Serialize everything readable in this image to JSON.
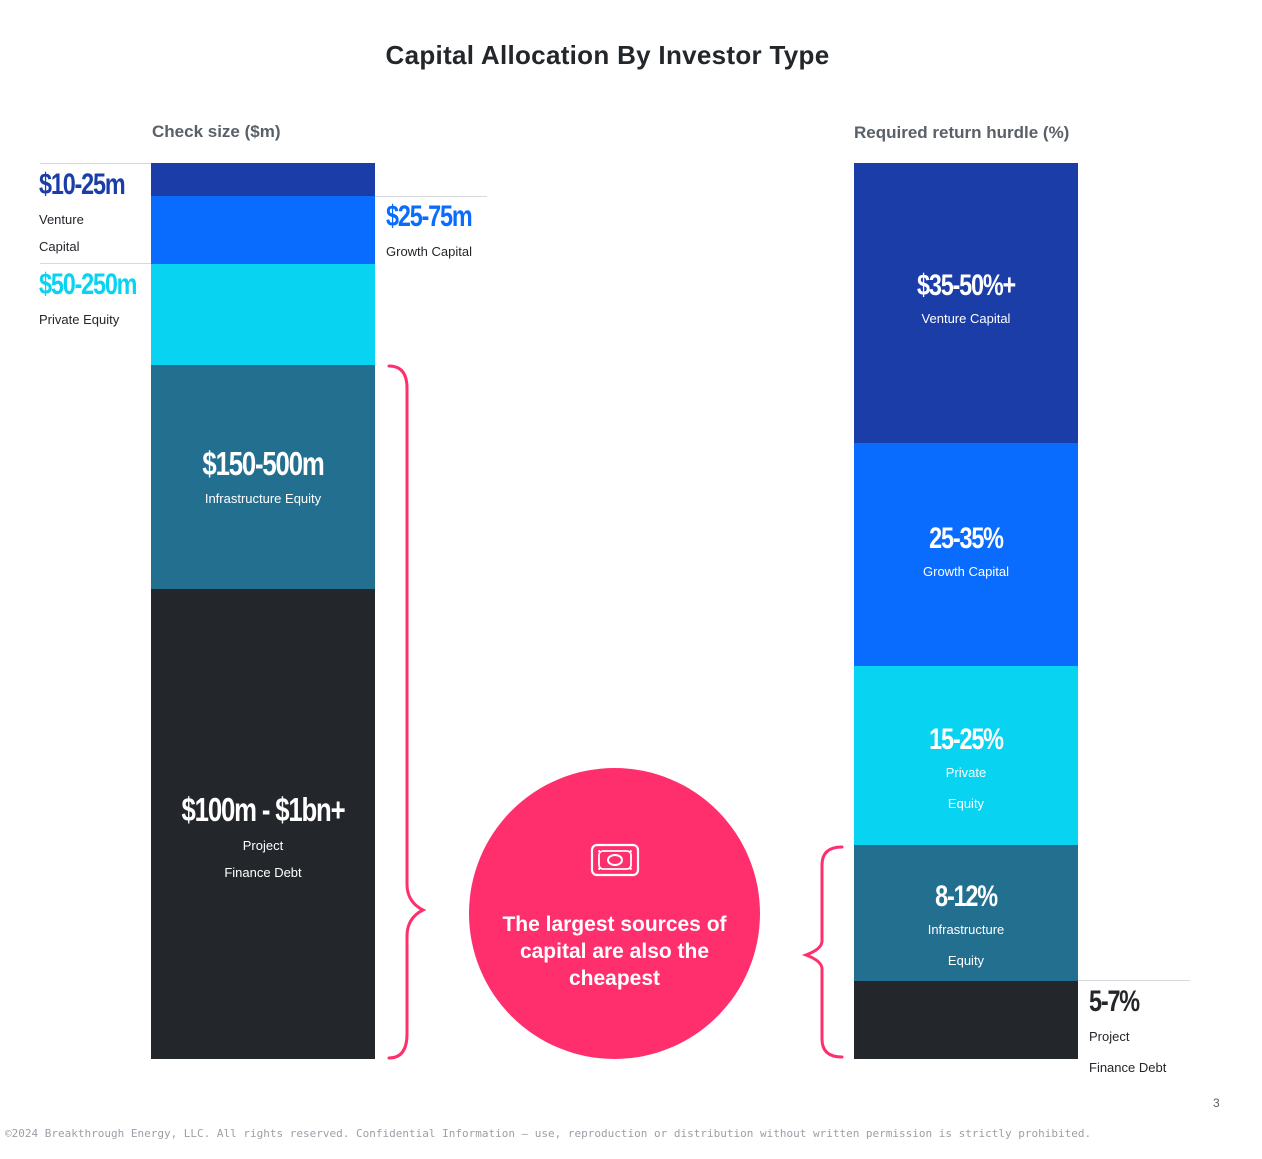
{
  "title": "Capital Allocation By Investor Type",
  "colors": {
    "venture": "#1a3da8",
    "growth": "#0a6cff",
    "private_equity": "#08d4f2",
    "infrastructure": "#236f90",
    "project_finance": "#23262b",
    "accent": "#ff2f6e"
  },
  "chart_data": [
    {
      "type": "bar",
      "title": "Check size ($m)",
      "stacked": true,
      "segments": [
        {
          "label": "$10-25m",
          "name": "Venture Capital",
          "name_lines": [
            "Venture",
            "Capital"
          ]
        },
        {
          "label": "$25-75m",
          "name": "Growth Capital",
          "name_lines": [
            "Growth Capital"
          ]
        },
        {
          "label": "$50-250m",
          "name": "Private Equity",
          "name_lines": [
            "Private Equity"
          ]
        },
        {
          "label": "$150-500m",
          "name": "Infrastructure Equity",
          "name_lines": [
            "Infrastructure Equity"
          ]
        },
        {
          "label": "$100m - $1bn+",
          "name": "Project Finance Debt",
          "name_lines": [
            "Project",
            "Finance Debt"
          ]
        }
      ]
    },
    {
      "type": "bar",
      "title": "Required return hurdle (%)",
      "stacked": true,
      "segments": [
        {
          "label": "$35-50%+",
          "name": "Venture Capital",
          "name_lines": [
            "Venture Capital"
          ]
        },
        {
          "label": "25-35%",
          "name": "Growth Capital",
          "name_lines": [
            "Growth Capital"
          ]
        },
        {
          "label": "15-25%",
          "name": "Private Equity",
          "name_lines": [
            "Private",
            "Equity"
          ]
        },
        {
          "label": "8-12%",
          "name": "Infrastructure Equity",
          "name_lines": [
            "Infrastructure",
            "Equity"
          ]
        },
        {
          "label": "5-7%",
          "name": "Project Finance Debt",
          "name_lines": [
            "Project",
            "Finance Debt"
          ]
        }
      ]
    }
  ],
  "callout": {
    "text": "The largest sources of capital are also the cheapest",
    "icon": "money-bill-icon"
  },
  "page_number": "3",
  "footer": "©2024 Breakthrough Energy, LLC. All rights reserved. Confidential Information – use, reproduction or distribution without written permission is strictly prohibited."
}
